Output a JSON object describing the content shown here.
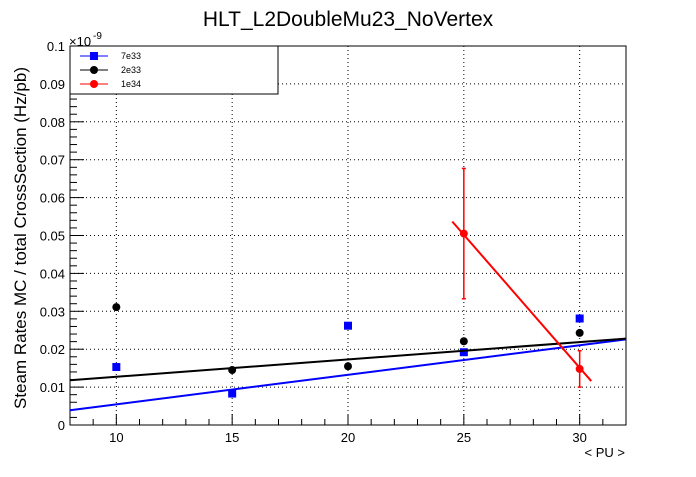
{
  "chart_data": {
    "type": "scatter",
    "title": "HLT_L2DoubleMu23_NoVertex",
    "xlabel": "< PU >",
    "ylabel": "Steam Rates MC / total CrossSection (Hz/pb)",
    "y_exponent": "×10",
    "y_exponent_power": "-9",
    "xlim": [
      8,
      32
    ],
    "ylim": [
      0,
      0.1
    ],
    "x_ticks": [
      10,
      15,
      20,
      25,
      30
    ],
    "x_tick_labels": [
      "10",
      "15",
      "20",
      "25",
      "30"
    ],
    "y_ticks": [
      0,
      0.01,
      0.02,
      0.03,
      0.04,
      0.05,
      0.06,
      0.07,
      0.08,
      0.09,
      0.1
    ],
    "y_tick_labels": [
      "0",
      "0.01",
      "0.02",
      "0.03",
      "0.04",
      "0.05",
      "0.06",
      "0.07",
      "0.08",
      "0.09",
      "0.1"
    ],
    "grid": true,
    "legend_position": "top-left",
    "series": [
      {
        "name": "7e33",
        "color": "#0000ff",
        "marker": "square",
        "x": [
          10,
          15,
          20,
          25,
          30
        ],
        "y": [
          0.0153,
          0.0083,
          0.0262,
          0.0192,
          0.0281
        ],
        "fit": {
          "x": [
            8,
            32
          ],
          "y": [
            0.0039,
            0.0226
          ]
        }
      },
      {
        "name": "2e33",
        "color": "#000000",
        "marker": "circle",
        "x": [
          10,
          15,
          20,
          25,
          30
        ],
        "y": [
          0.0311,
          0.0145,
          0.0155,
          0.0221,
          0.0243
        ],
        "fit": {
          "x": [
            8,
            32
          ],
          "y": [
            0.0118,
            0.0228
          ]
        }
      },
      {
        "name": "1e34",
        "color": "#ff0000",
        "marker": "circle",
        "x": [
          25,
          30
        ],
        "y": [
          0.0505,
          0.0148
        ],
        "yerr": [
          0.0172,
          0.0048
        ],
        "fit": {
          "x": [
            24.5,
            30.5
          ],
          "y": [
            0.0537,
            0.0116
          ]
        }
      }
    ]
  }
}
